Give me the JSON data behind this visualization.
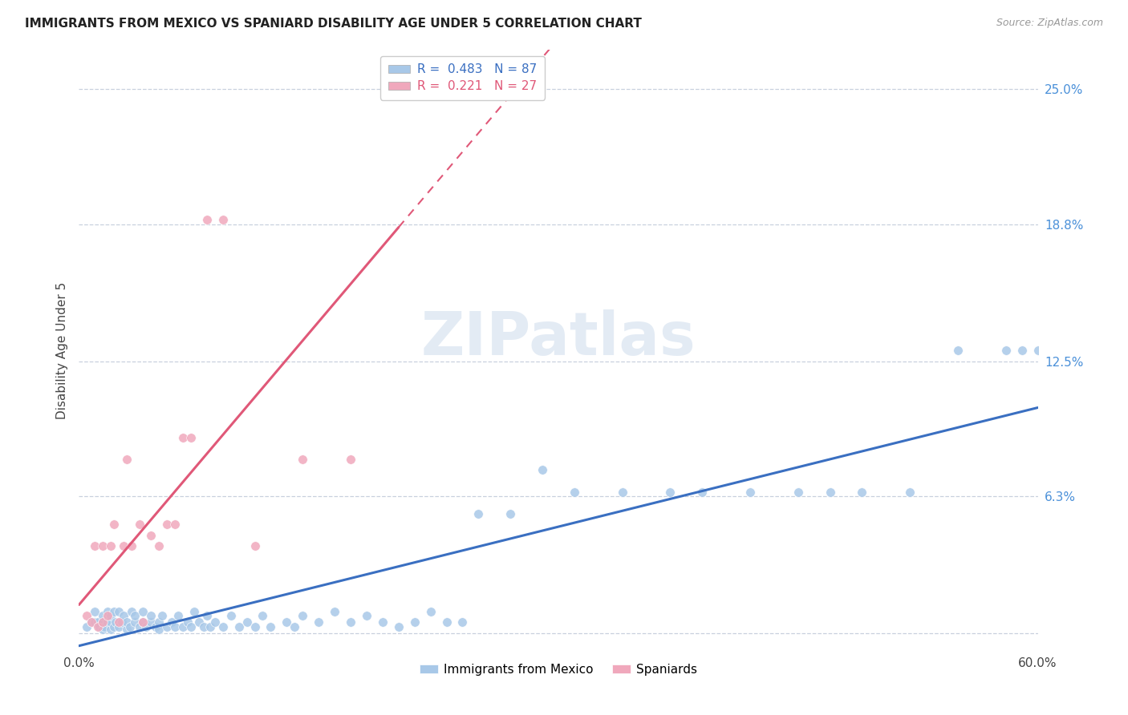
{
  "title": "IMMIGRANTS FROM MEXICO VS SPANIARD DISABILITY AGE UNDER 5 CORRELATION CHART",
  "source": "Source: ZipAtlas.com",
  "ylabel": "Disability Age Under 5",
  "y_ticks": [
    0.0,
    0.063,
    0.125,
    0.188,
    0.25
  ],
  "y_tick_labels": [
    "",
    "6.3%",
    "12.5%",
    "18.8%",
    "25.0%"
  ],
  "x_min": 0.0,
  "x_max": 0.6,
  "y_min": -0.008,
  "y_max": 0.268,
  "color_mexico": "#a8c8e8",
  "color_spain": "#f0a8bc",
  "line_color_mexico": "#3a6fc1",
  "line_color_spain": "#e05878",
  "watermark_text": "ZIPatlas",
  "legend_r1": "0.483",
  "legend_n1": "87",
  "legend_r2": "0.221",
  "legend_n2": "27",
  "mexico_scatter_x": [
    0.005,
    0.008,
    0.01,
    0.01,
    0.012,
    0.013,
    0.015,
    0.015,
    0.015,
    0.016,
    0.018,
    0.018,
    0.02,
    0.02,
    0.02,
    0.022,
    0.022,
    0.023,
    0.025,
    0.025,
    0.027,
    0.028,
    0.03,
    0.03,
    0.032,
    0.033,
    0.035,
    0.035,
    0.038,
    0.04,
    0.04,
    0.042,
    0.045,
    0.045,
    0.048,
    0.05,
    0.05,
    0.052,
    0.055,
    0.058,
    0.06,
    0.062,
    0.065,
    0.068,
    0.07,
    0.072,
    0.075,
    0.078,
    0.08,
    0.082,
    0.085,
    0.09,
    0.095,
    0.1,
    0.105,
    0.11,
    0.115,
    0.12,
    0.13,
    0.135,
    0.14,
    0.15,
    0.16,
    0.17,
    0.18,
    0.19,
    0.2,
    0.21,
    0.22,
    0.23,
    0.24,
    0.25,
    0.27,
    0.29,
    0.31,
    0.34,
    0.37,
    0.39,
    0.42,
    0.45,
    0.47,
    0.49,
    0.52,
    0.55,
    0.58,
    0.59,
    0.6
  ],
  "mexico_scatter_y": [
    0.003,
    0.005,
    0.005,
    0.01,
    0.005,
    0.003,
    0.002,
    0.005,
    0.008,
    0.003,
    0.005,
    0.01,
    0.002,
    0.005,
    0.008,
    0.003,
    0.01,
    0.005,
    0.003,
    0.01,
    0.005,
    0.008,
    0.002,
    0.005,
    0.003,
    0.01,
    0.005,
    0.008,
    0.003,
    0.005,
    0.01,
    0.003,
    0.005,
    0.008,
    0.003,
    0.002,
    0.005,
    0.008,
    0.003,
    0.005,
    0.003,
    0.008,
    0.003,
    0.005,
    0.003,
    0.01,
    0.005,
    0.003,
    0.008,
    0.003,
    0.005,
    0.003,
    0.008,
    0.003,
    0.005,
    0.003,
    0.008,
    0.003,
    0.005,
    0.003,
    0.008,
    0.005,
    0.01,
    0.005,
    0.008,
    0.005,
    0.003,
    0.005,
    0.01,
    0.005,
    0.005,
    0.055,
    0.055,
    0.075,
    0.065,
    0.065,
    0.065,
    0.065,
    0.065,
    0.065,
    0.065,
    0.065,
    0.065,
    0.13,
    0.13,
    0.13,
    0.13
  ],
  "spain_scatter_x": [
    0.005,
    0.008,
    0.01,
    0.012,
    0.015,
    0.015,
    0.018,
    0.02,
    0.022,
    0.025,
    0.028,
    0.03,
    0.033,
    0.038,
    0.04,
    0.045,
    0.05,
    0.055,
    0.06,
    0.065,
    0.07,
    0.08,
    0.09,
    0.11,
    0.14,
    0.17,
    0.2
  ],
  "spain_scatter_y": [
    0.008,
    0.005,
    0.04,
    0.003,
    0.005,
    0.04,
    0.008,
    0.04,
    0.05,
    0.005,
    0.04,
    0.08,
    0.04,
    0.05,
    0.005,
    0.045,
    0.04,
    0.05,
    0.05,
    0.09,
    0.09,
    0.19,
    0.19,
    0.04,
    0.08,
    0.08,
    0.25
  ]
}
